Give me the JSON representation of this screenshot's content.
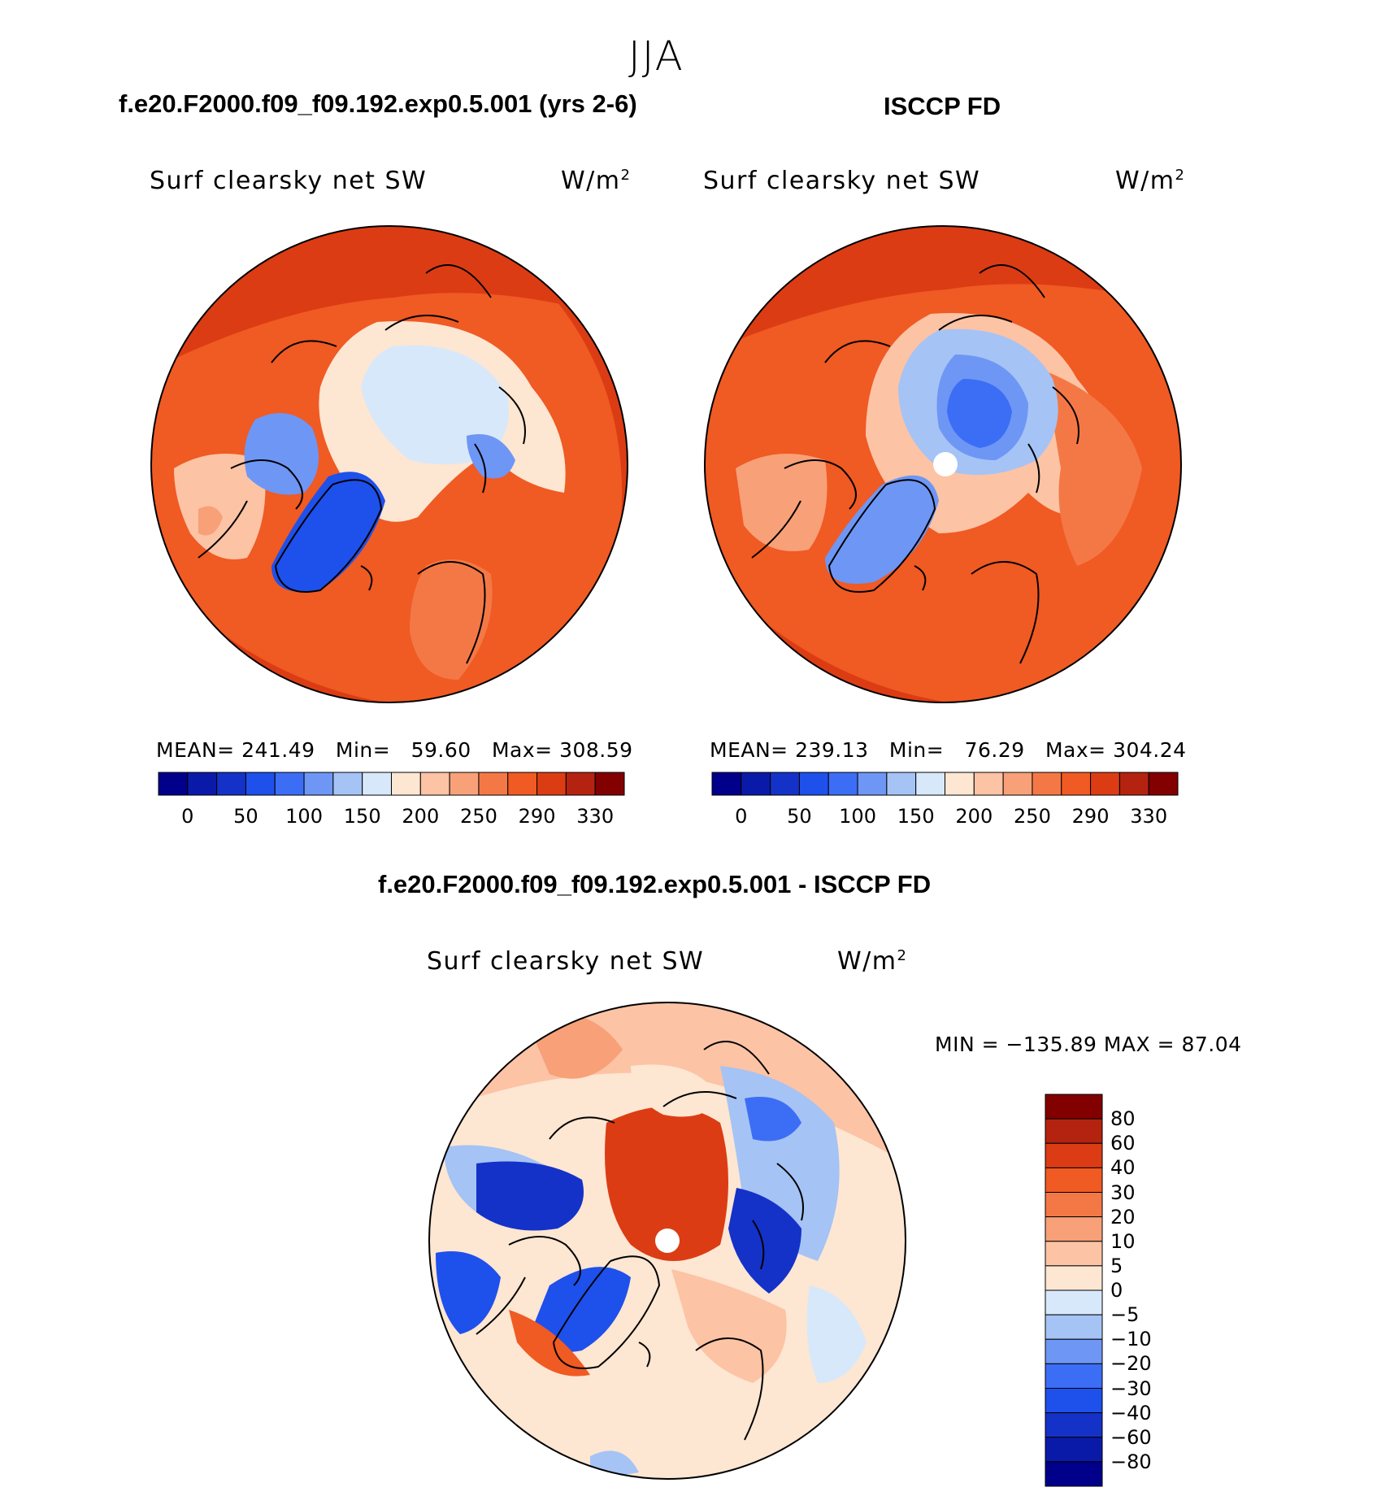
{
  "season": "JJA",
  "panels": [
    {
      "heading": "f.e20.F2000.f09_f09.192.exp0.5.001 (yrs 2-6)",
      "variable": "Surf clearsky net SW",
      "units": "W/m",
      "units_sup": "2",
      "stats": {
        "mean_label": "MEAN=",
        "mean": "241.49",
        "min_label": "Min=",
        "min": "59.60",
        "max_label": "Max=",
        "max": "308.59"
      }
    },
    {
      "heading": "ISCCP FD",
      "variable": "Surf clearsky net SW",
      "units": "W/m",
      "units_sup": "2",
      "stats": {
        "mean_label": "MEAN=",
        "mean": "239.13",
        "min_label": "Min=",
        "min": "76.29",
        "max_label": "Max=",
        "max": "304.24"
      }
    },
    {
      "heading": "f.e20.F2000.f09_f09.192.exp0.5.001 - ISCCP FD",
      "variable": "Surf clearsky net SW",
      "units": "W/m",
      "units_sup": "2",
      "minmax": "MIN = −135.89 MAX =  87.04"
    }
  ],
  "abs_colorbar": {
    "colors": [
      "#00008b",
      "#0a1aa8",
      "#1432c8",
      "#1e50eb",
      "#3c6ef5",
      "#6e96f5",
      "#a5c3f5",
      "#d7e8fa",
      "#fde6d2",
      "#fcc3a5",
      "#f8a078",
      "#f47846",
      "#f05a23",
      "#dc3c14",
      "#b4230f",
      "#820000"
    ],
    "labels": [
      "0",
      "50",
      "100",
      "150",
      "200",
      "250",
      "290",
      "330"
    ]
  },
  "diff_colorbar": {
    "colors": [
      "#820000",
      "#b4230f",
      "#dc3c14",
      "#f05a23",
      "#f47846",
      "#f8a078",
      "#fcc3a5",
      "#fde6d2",
      "#d7e8fa",
      "#a5c3f5",
      "#6e96f5",
      "#3c6ef5",
      "#1e50eb",
      "#1432c8",
      "#0a1aa8",
      "#00008b"
    ],
    "labels": [
      "80",
      "60",
      "40",
      "30",
      "20",
      "10",
      "5",
      "0",
      "−5",
      "−10",
      "−20",
      "−30",
      "−40",
      "−60",
      "−80"
    ]
  }
}
